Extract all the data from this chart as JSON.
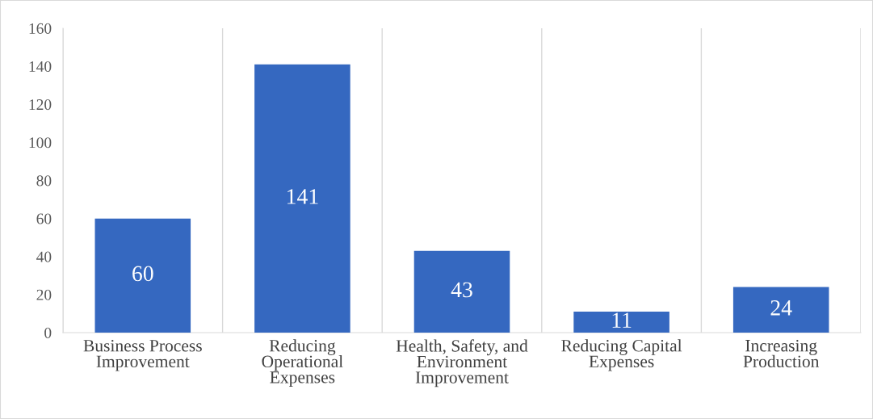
{
  "chart_data": {
    "type": "bar",
    "categories": [
      "Business Process\nImprovement",
      "Reducing\nOperational\nExpenses",
      "Health, Safety, and\nEnvironment\nImprovement",
      "Reducing Capital\nExpenses",
      "Increasing\nProduction"
    ],
    "values": [
      60,
      141,
      43,
      11,
      24
    ],
    "color": "#3568c0",
    "ylim": [
      0,
      160
    ],
    "yticks": [
      0,
      20,
      40,
      60,
      80,
      100,
      120,
      140,
      160
    ],
    "grid": "x",
    "data_labels": true
  }
}
